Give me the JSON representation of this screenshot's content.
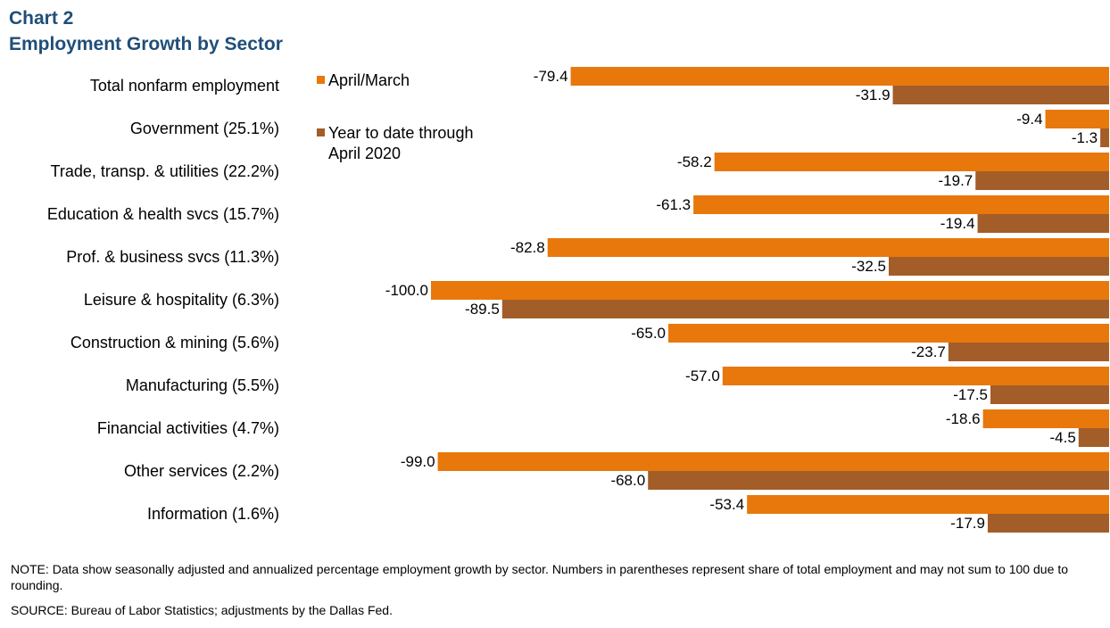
{
  "header": {
    "chart_label": "Chart 2",
    "chart_title": "Employment  Growth by Sector"
  },
  "footer": {
    "note": "NOTE: Data show seasonally adjusted and annualized percentage employment growth by sector. Numbers in parentheses represent share of total employment and may not sum to 100 due to rounding.",
    "source": "SOURCE: Bureau of Labor Statistics; adjustments by the Dallas Fed."
  },
  "colors": {
    "april_march": "#e8780c",
    "year_to_date": "#a35d28",
    "title": "#1f4e79"
  },
  "chart_data": {
    "type": "bar",
    "orientation": "horizontal",
    "title": "Employment  Growth by Sector",
    "categories": [
      "Total nonfarm employment",
      "Government (25.1%)",
      "Trade, transp. & utilities (22.2%)",
      "Education & health svcs (15.7%)",
      "Prof. & business svcs (11.3%)",
      "Leisure & hospitality (6.3%)",
      "Construction & mining (5.6%)",
      "Manufacturing (5.5%)",
      "Financial activities (4.7%)",
      "Other services (2.2%)",
      "Information (1.6%)"
    ],
    "series": [
      {
        "name": "April/March",
        "color": "#e8780c",
        "values": [
          -79.4,
          -9.4,
          -58.2,
          -61.3,
          -82.8,
          -100.0,
          -65.0,
          -57.0,
          -18.6,
          -99.0,
          -53.4
        ]
      },
      {
        "name": "Year to date through April 2020",
        "color": "#a35d28",
        "values": [
          -31.9,
          -1.3,
          -19.7,
          -19.4,
          -32.5,
          -89.5,
          -23.7,
          -17.5,
          -4.5,
          -68.0,
          -17.9
        ]
      }
    ],
    "xlim": [
      -100,
      0
    ],
    "legend": "top-left",
    "grid": false,
    "data_labels": true
  }
}
